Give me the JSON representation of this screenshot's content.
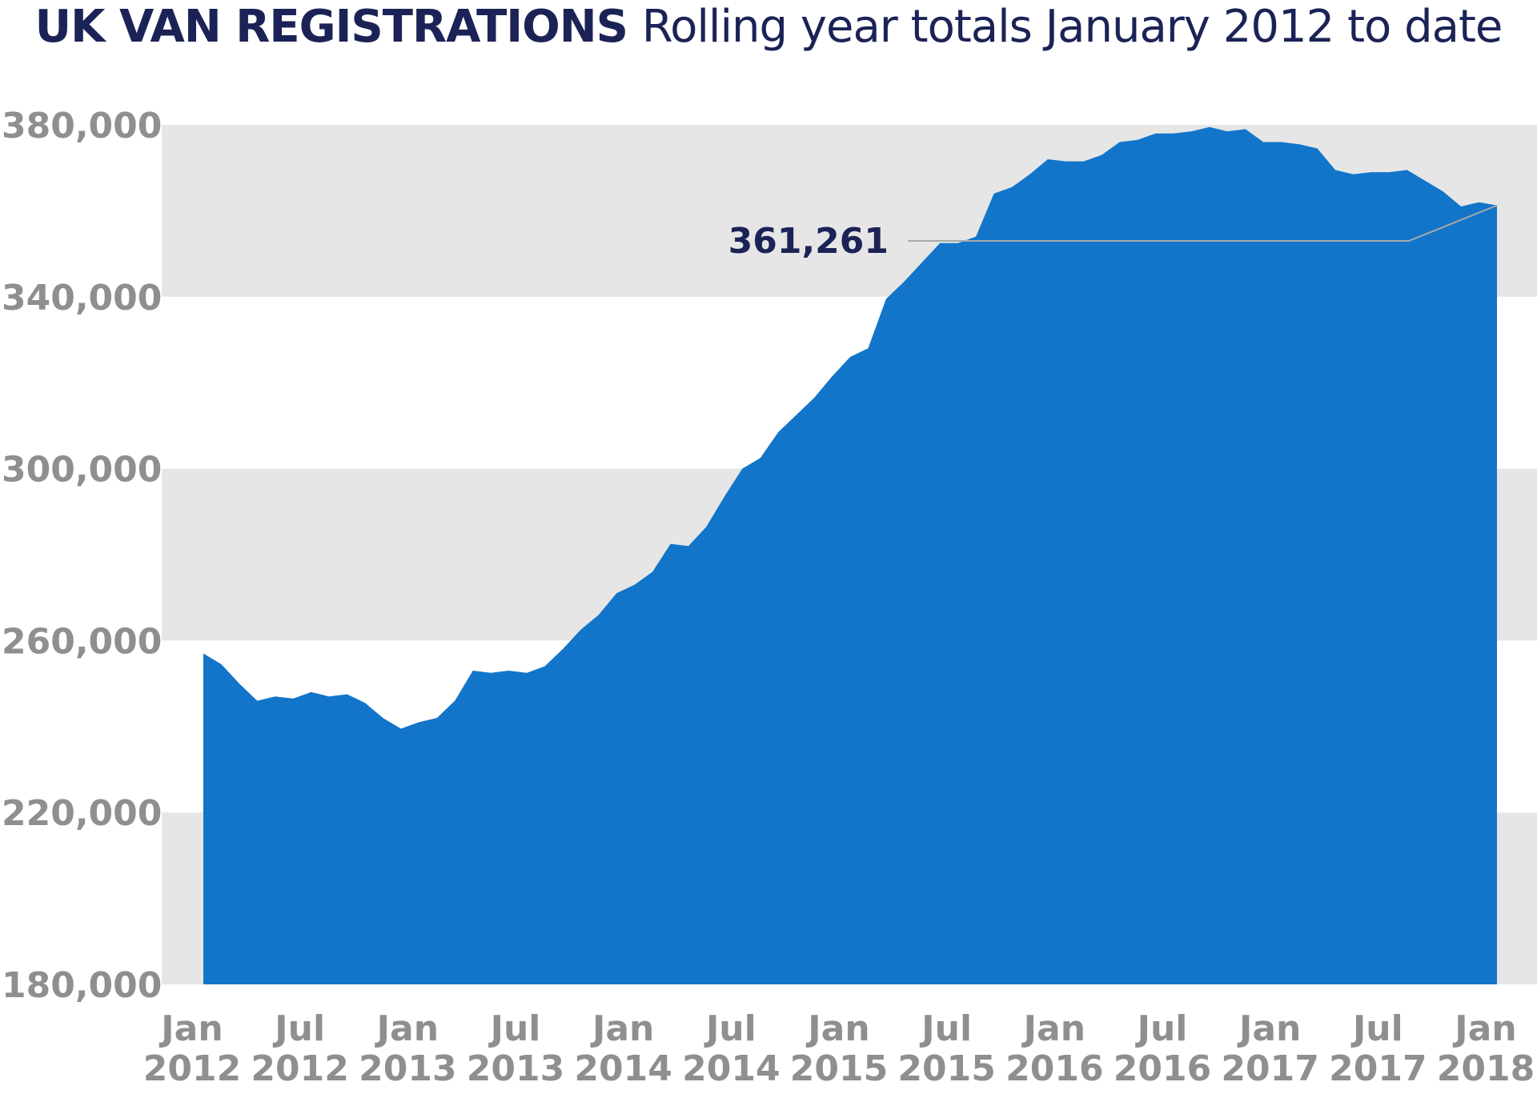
{
  "chart_data": {
    "type": "area",
    "title_bold": "UK VAN REGISTRATIONS",
    "title_rest": "Rolling year totals January 2012 to date",
    "xlabel": "",
    "ylabel": "",
    "ylim": [
      180000,
      380000
    ],
    "y_ticks": [
      {
        "value": 380000,
        "label": "380,000"
      },
      {
        "value": 340000,
        "label": "340,000"
      },
      {
        "value": 300000,
        "label": "300,000"
      },
      {
        "value": 260000,
        "label": "260,000"
      },
      {
        "value": 220000,
        "label": "220,000"
      },
      {
        "value": 180000,
        "label": "180,000"
      }
    ],
    "x_ticks": [
      {
        "index": 0,
        "line1": "Jan",
        "line2": "2012"
      },
      {
        "index": 6,
        "line1": "Jul",
        "line2": "2012"
      },
      {
        "index": 12,
        "line1": "Jan",
        "line2": "2013"
      },
      {
        "index": 18,
        "line1": "Jul",
        "line2": "2013"
      },
      {
        "index": 24,
        "line1": "Jan",
        "line2": "2014"
      },
      {
        "index": 30,
        "line1": "Jul",
        "line2": "2014"
      },
      {
        "index": 36,
        "line1": "Jan",
        "line2": "2015"
      },
      {
        "index": 42,
        "line1": "Jul",
        "line2": "2015"
      },
      {
        "index": 48,
        "line1": "Jan",
        "line2": "2016"
      },
      {
        "index": 54,
        "line1": "Jul",
        "line2": "2016"
      },
      {
        "index": 60,
        "line1": "Jan",
        "line2": "2017"
      },
      {
        "index": 66,
        "line1": "Jul",
        "line2": "2017"
      },
      {
        "index": 72,
        "line1": "Jan",
        "line2": "2018"
      }
    ],
    "series": [
      {
        "name": "Rolling year total",
        "color": "#1275ca",
        "values": [
          257000,
          254500,
          250000,
          246000,
          247000,
          246500,
          248000,
          247000,
          247500,
          245500,
          242000,
          239500,
          241000,
          242000,
          246000,
          253000,
          252500,
          253000,
          252500,
          254000,
          258000,
          262500,
          266000,
          271000,
          273000,
          276000,
          282500,
          282000,
          286500,
          293500,
          300000,
          302500,
          308500,
          312500,
          316500,
          321500,
          326000,
          328000,
          339500,
          343500,
          348000,
          352500,
          352500,
          354000,
          364000,
          365500,
          368500,
          372000,
          371500,
          371500,
          373000,
          376000,
          376500,
          378000,
          378000,
          378500,
          379500,
          378500,
          379000,
          376000,
          376000,
          375500,
          374500,
          369500,
          368500,
          369000,
          369000,
          369500,
          367000,
          364500,
          361000,
          362000,
          361261
        ]
      }
    ],
    "callout": {
      "label": "361,261",
      "value": 361261,
      "index": 72
    },
    "band_color": "#e6e6e6"
  }
}
